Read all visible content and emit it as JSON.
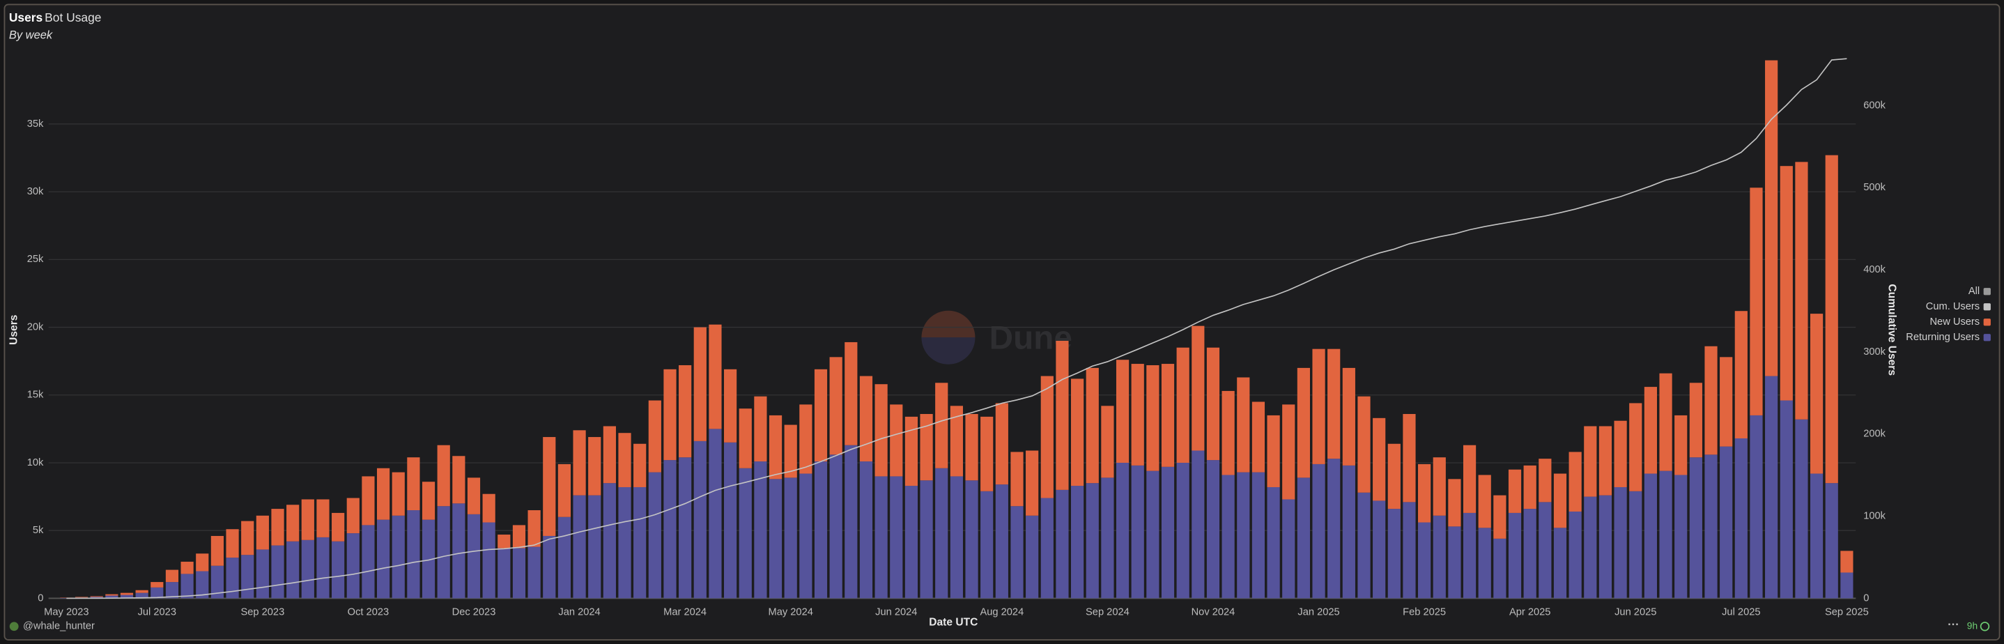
{
  "header": {
    "tabs": [
      "Users",
      "Bot Usage"
    ],
    "subtitle": "By week"
  },
  "chart_data": {
    "type": "bar",
    "stacked": true,
    "categories": [
      "May 2023",
      null,
      null,
      null,
      null,
      null,
      "Jul 2023",
      null,
      null,
      null,
      null,
      null,
      null,
      "Sep 2023",
      null,
      null,
      null,
      null,
      null,
      null,
      "Oct 2023",
      null,
      null,
      null,
      null,
      null,
      null,
      "Dec 2023",
      null,
      null,
      null,
      null,
      null,
      null,
      "Jan 2024",
      null,
      null,
      null,
      null,
      null,
      null,
      "Mar 2024",
      null,
      null,
      null,
      null,
      null,
      null,
      "May 2024",
      null,
      null,
      null,
      null,
      null,
      null,
      "Jun 2024",
      null,
      null,
      null,
      null,
      null,
      null,
      "Aug 2024",
      null,
      null,
      null,
      null,
      null,
      null,
      "Sep 2024",
      null,
      null,
      null,
      null,
      null,
      null,
      "Nov 2024",
      null,
      null,
      null,
      null,
      null,
      null,
      "Jan 2025",
      null,
      null,
      null,
      null,
      null,
      null,
      "Feb 2025",
      null,
      null,
      null,
      null,
      null,
      null,
      "Apr 2025",
      null,
      null,
      null,
      null,
      null,
      null,
      "Jun 2025",
      null,
      null,
      null,
      null,
      null,
      null,
      "Jul 2025",
      null,
      null,
      null,
      null,
      null,
      null,
      "Sep 2025"
    ],
    "series": [
      {
        "name": "Returning Users",
        "color": "#55539b",
        "values": [
          30,
          60,
          100,
          200,
          250,
          400,
          800,
          1200,
          1800,
          2000,
          2400,
          3000,
          3200,
          3600,
          3900,
          4200,
          4300,
          4500,
          4200,
          4800,
          5400,
          5800,
          6100,
          6500,
          5800,
          6800,
          7000,
          6200,
          5600,
          3700,
          3700,
          3800,
          4600,
          6000,
          7600,
          7600,
          8500,
          8200,
          8200,
          9300,
          10200,
          10400,
          11600,
          12500,
          11500,
          9600,
          10100,
          8800,
          8900,
          9200,
          10100,
          10600,
          11300,
          10100,
          9000,
          9000,
          8300,
          8700,
          9600,
          9000,
          8700,
          7900,
          8400,
          6800,
          6100,
          7400,
          8000,
          8300,
          8500,
          8900,
          10000,
          9800,
          9400,
          9700,
          10000,
          10900,
          10200,
          9100,
          9300,
          9300,
          8200,
          7300,
          8900,
          9900,
          10300,
          9800,
          7800,
          7200,
          6600,
          7100,
          5600,
          6100,
          5300,
          6300,
          5200,
          4400,
          6300,
          6600,
          7100,
          5200,
          6400,
          7500,
          7600,
          8200,
          7900,
          9200,
          9400,
          9100,
          10400,
          10600,
          11200,
          11800,
          13500,
          16400,
          14600,
          13200,
          9200,
          8500,
          1900
        ]
      },
      {
        "name": "New Users",
        "color": "#e2653f",
        "values": [
          20,
          40,
          50,
          100,
          150,
          200,
          400,
          900,
          900,
          1300,
          2200,
          2100,
          2500,
          2500,
          2700,
          2700,
          3000,
          2800,
          2100,
          2600,
          3600,
          3800,
          3200,
          3900,
          2800,
          4500,
          3500,
          2700,
          2100,
          1000,
          1700,
          2700,
          7300,
          3900,
          4800,
          4300,
          4200,
          4000,
          3200,
          5300,
          6700,
          6800,
          8400,
          7700,
          5400,
          4400,
          4800,
          4700,
          3900,
          5100,
          6800,
          7200,
          7600,
          6300,
          6800,
          5300,
          5100,
          4900,
          6300,
          5200,
          4900,
          5500,
          6000,
          4000,
          4800,
          9000,
          11000,
          7900,
          8500,
          5300,
          7600,
          7500,
          7800,
          7600,
          8500,
          9200,
          8300,
          6200,
          7000,
          5200,
          5300,
          7000,
          8100,
          8500,
          8100,
          7200,
          7100,
          6100,
          4800,
          6500,
          4300,
          4300,
          3500,
          5000,
          3900,
          3200,
          3200,
          3200,
          3200,
          4000,
          4400,
          5200,
          5100,
          4900,
          6500,
          6400,
          7200,
          4400,
          5500,
          8000,
          6600,
          9400,
          16800,
          23300,
          17300,
          19000,
          11800,
          24200,
          1600
        ]
      },
      {
        "name": "Cum. Users",
        "type": "line",
        "axis": "y2",
        "color": "#c4c4c4",
        "values": [
          20,
          60,
          110,
          210,
          360,
          560,
          960,
          1860,
          2760,
          4060,
          6260,
          8360,
          10860,
          13360,
          16060,
          18760,
          21760,
          24560,
          26660,
          29260,
          32860,
          36660,
          39860,
          43760,
          46560,
          51060,
          54560,
          57260,
          59360,
          60360,
          62060,
          64760,
          72060,
          75960,
          80760,
          85060,
          89260,
          93260,
          96460,
          101760,
          108460,
          115260,
          123660,
          131360,
          136760,
          141160,
          145960,
          150660,
          154560,
          159660,
          166460,
          173660,
          181260,
          187560,
          194360,
          199660,
          204760,
          209660,
          215960,
          221160,
          226060,
          231560,
          237560,
          241560,
          246360,
          255360,
          266360,
          274260,
          282760,
          288060,
          295660,
          303160,
          310960,
          318560,
          327060,
          336260,
          344560,
          350760,
          357760,
          362960,
          368260,
          375260,
          383360,
          391860,
          399960,
          407160,
          414260,
          420360,
          425160,
          431660,
          435960,
          440260,
          443760,
          448760,
          452660,
          455860,
          459060,
          462260,
          465460,
          469460,
          473860,
          479060,
          484160,
          489060,
          495560,
          501960,
          509160,
          513560,
          519060,
          527060,
          533660,
          543060,
          559860,
          583160,
          600460,
          619460,
          631260,
          655460,
          657060
        ]
      }
    ],
    "ylim": [
      0,
      40000
    ],
    "yticks": [
      0,
      {
        "value": 5000,
        "label": "5k"
      },
      {
        "value": 10000,
        "label": "10k"
      },
      {
        "value": 15000,
        "label": "15k"
      },
      {
        "value": 20000,
        "label": "20k"
      },
      {
        "value": 25000,
        "label": "25k"
      },
      {
        "value": 30000,
        "label": "30k"
      },
      {
        "value": 35000,
        "label": "35k"
      }
    ],
    "y2lim": [
      0,
      660000
    ],
    "y2ticks": [
      0,
      {
        "value": 100000,
        "label": "100k"
      },
      {
        "value": 200000,
        "label": "200k"
      },
      {
        "value": 300000,
        "label": "300k"
      },
      {
        "value": 400000,
        "label": "400k"
      },
      {
        "value": 500000,
        "label": "500k"
      },
      {
        "value": 600000,
        "label": "600k"
      }
    ],
    "xlabel": "Date UTC",
    "ylabel": "Users",
    "y2label": "Cumulative Users",
    "grid": true,
    "legend": "right",
    "legend_all_label": "All",
    "legend_all_color": "#9a9a9a",
    "watermark": "Dune"
  },
  "footer": {
    "user": "@whale_hunter",
    "age": "9h"
  }
}
